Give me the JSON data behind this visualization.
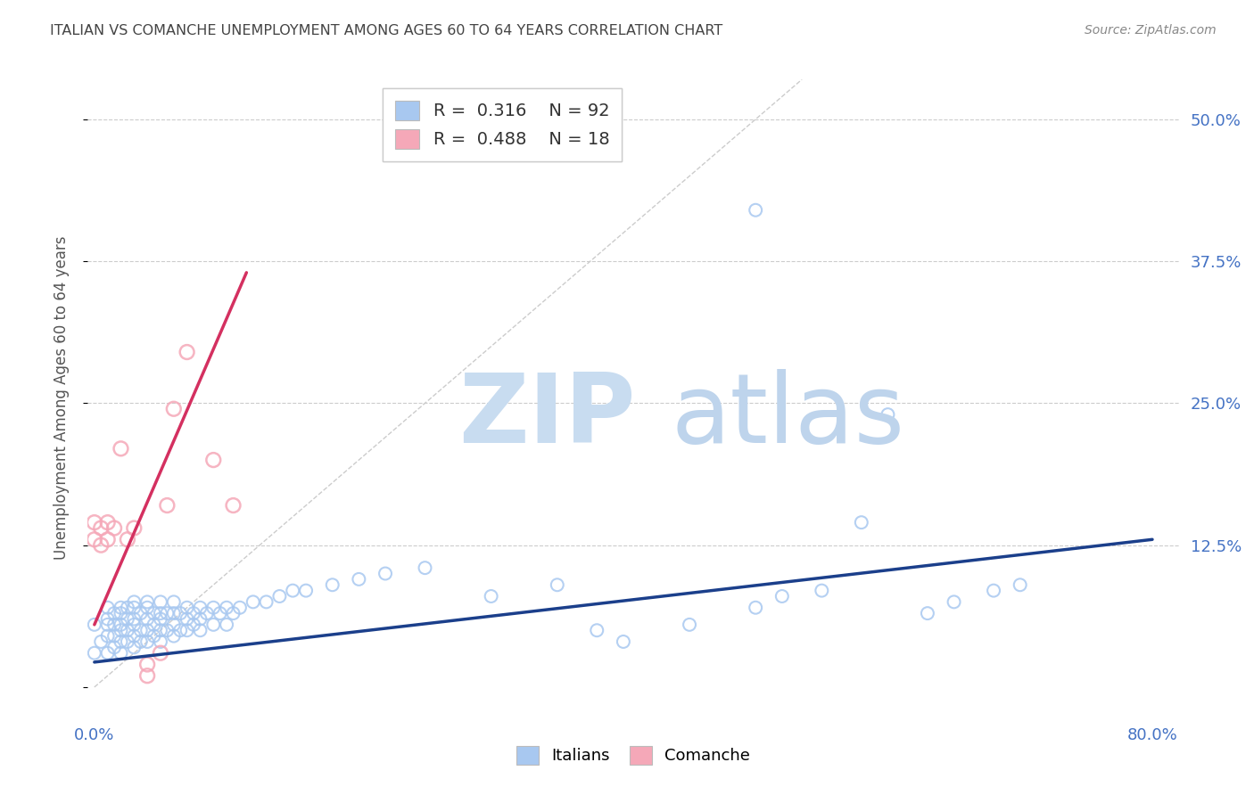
{
  "title": "ITALIAN VS COMANCHE UNEMPLOYMENT AMONG AGES 60 TO 64 YEARS CORRELATION CHART",
  "source": "Source: ZipAtlas.com",
  "ylabel": "Unemployment Among Ages 60 to 64 years",
  "xlim": [
    -0.005,
    0.82
  ],
  "ylim": [
    -0.025,
    0.535
  ],
  "xtick_positions": [
    0.0,
    0.1,
    0.2,
    0.3,
    0.4,
    0.5,
    0.6,
    0.7,
    0.8
  ],
  "xticklabels": [
    "0.0%",
    "",
    "",
    "",
    "",
    "",
    "",
    "",
    "80.0%"
  ],
  "ytick_positions": [
    0.0,
    0.125,
    0.25,
    0.375,
    0.5
  ],
  "yticklabels_right": [
    "",
    "12.5%",
    "25.0%",
    "37.5%",
    "50.0%"
  ],
  "italian_R": "0.316",
  "italian_N": "92",
  "comanche_R": "0.488",
  "comanche_N": "18",
  "italian_marker_color": "#A8C8F0",
  "italian_line_color": "#1B3F8B",
  "comanche_marker_color": "#F5A8B8",
  "comanche_line_color": "#D43060",
  "ref_line_color": "#CCCCCC",
  "grid_color": "#CCCCCC",
  "watermark_zip_color": "#C8DCF0",
  "watermark_atlas_color": "#BED4EC",
  "background_color": "#FFFFFF",
  "title_color": "#444444",
  "source_color": "#888888",
  "tick_color": "#4472C4",
  "ylabel_color": "#555555",
  "italian_x": [
    0.0,
    0.0,
    0.005,
    0.01,
    0.01,
    0.01,
    0.01,
    0.01,
    0.015,
    0.015,
    0.015,
    0.015,
    0.02,
    0.02,
    0.02,
    0.02,
    0.02,
    0.02,
    0.025,
    0.025,
    0.025,
    0.025,
    0.03,
    0.03,
    0.03,
    0.03,
    0.03,
    0.03,
    0.035,
    0.035,
    0.035,
    0.04,
    0.04,
    0.04,
    0.04,
    0.04,
    0.045,
    0.045,
    0.045,
    0.05,
    0.05,
    0.05,
    0.05,
    0.05,
    0.055,
    0.055,
    0.06,
    0.06,
    0.06,
    0.06,
    0.065,
    0.065,
    0.07,
    0.07,
    0.07,
    0.075,
    0.075,
    0.08,
    0.08,
    0.08,
    0.085,
    0.09,
    0.09,
    0.095,
    0.1,
    0.1,
    0.105,
    0.11,
    0.12,
    0.13,
    0.14,
    0.15,
    0.16,
    0.18,
    0.2,
    0.22,
    0.25,
    0.3,
    0.35,
    0.38,
    0.4,
    0.45,
    0.5,
    0.5,
    0.52,
    0.55,
    0.58,
    0.6,
    0.63,
    0.65,
    0.68,
    0.7
  ],
  "italian_y": [
    0.03,
    0.055,
    0.04,
    0.03,
    0.045,
    0.055,
    0.06,
    0.07,
    0.035,
    0.045,
    0.055,
    0.065,
    0.03,
    0.04,
    0.05,
    0.055,
    0.065,
    0.07,
    0.04,
    0.05,
    0.06,
    0.07,
    0.035,
    0.045,
    0.055,
    0.06,
    0.07,
    0.075,
    0.04,
    0.05,
    0.065,
    0.04,
    0.05,
    0.06,
    0.07,
    0.075,
    0.045,
    0.055,
    0.065,
    0.04,
    0.05,
    0.06,
    0.065,
    0.075,
    0.05,
    0.065,
    0.045,
    0.055,
    0.065,
    0.075,
    0.05,
    0.065,
    0.05,
    0.06,
    0.07,
    0.055,
    0.065,
    0.05,
    0.06,
    0.07,
    0.065,
    0.055,
    0.07,
    0.065,
    0.055,
    0.07,
    0.065,
    0.07,
    0.075,
    0.075,
    0.08,
    0.085,
    0.085,
    0.09,
    0.095,
    0.1,
    0.105,
    0.08,
    0.09,
    0.05,
    0.04,
    0.055,
    0.07,
    0.42,
    0.08,
    0.085,
    0.145,
    0.24,
    0.065,
    0.075,
    0.085,
    0.09
  ],
  "comanche_x": [
    0.0,
    0.0,
    0.005,
    0.005,
    0.01,
    0.01,
    0.015,
    0.02,
    0.025,
    0.03,
    0.04,
    0.04,
    0.05,
    0.055,
    0.06,
    0.07,
    0.09,
    0.105
  ],
  "comanche_y": [
    0.13,
    0.145,
    0.125,
    0.14,
    0.13,
    0.145,
    0.14,
    0.21,
    0.13,
    0.14,
    0.01,
    0.02,
    0.03,
    0.16,
    0.245,
    0.295,
    0.2,
    0.16
  ],
  "italian_trendline_x0": 0.0,
  "italian_trendline_y0": 0.022,
  "italian_trendline_x1": 0.8,
  "italian_trendline_y1": 0.13,
  "comanche_trendline_x0": 0.0,
  "comanche_trendline_y0": 0.055,
  "comanche_trendline_x1": 0.115,
  "comanche_trendline_y1": 0.365
}
